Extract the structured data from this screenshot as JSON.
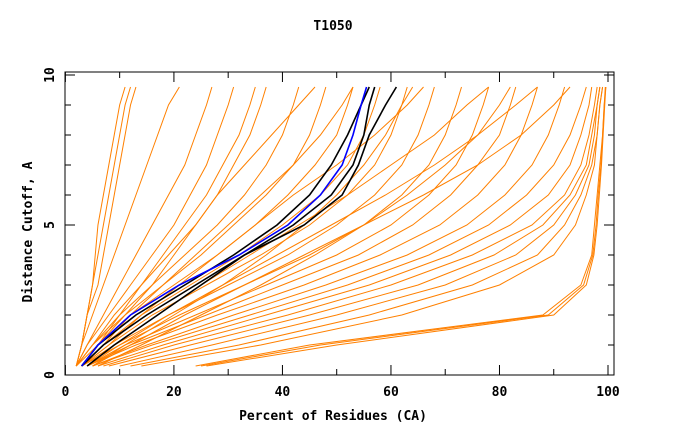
{
  "chart_data": {
    "type": "line",
    "title": "T1050",
    "xlabel": "Percent of Residues (CA)",
    "ylabel": "Distance Cutoff, A",
    "xlim": [
      0,
      101.5
    ],
    "ylim": [
      0,
      10
    ],
    "xticks": [
      0,
      20,
      40,
      60,
      80,
      100
    ],
    "yticks": [
      0,
      5,
      10
    ],
    "grid": false,
    "colors": {
      "models": "#ff8000",
      "highlight_black": "#000000",
      "highlight_blue": "#0000ff"
    },
    "y_levels": [
      0.3,
      1,
      2,
      3,
      4,
      5,
      6,
      7,
      8,
      9,
      9.6
    ],
    "series": [
      {
        "name": "model",
        "color": "models",
        "x": [
          2,
          3,
          4,
          5,
          6,
          7,
          8,
          9,
          10,
          11,
          12
        ]
      },
      {
        "name": "model",
        "color": "models",
        "x": [
          2,
          3,
          4,
          5,
          5.5,
          6,
          7,
          8,
          9,
          10,
          11
        ]
      },
      {
        "name": "model",
        "color": "models",
        "x": [
          2,
          3,
          4,
          6,
          7,
          8,
          9,
          10,
          11,
          12,
          13
        ]
      },
      {
        "name": "model",
        "color": "models",
        "x": [
          2,
          3,
          5,
          7,
          9,
          11,
          13,
          15,
          17,
          19,
          21
        ]
      },
      {
        "name": "model",
        "color": "models",
        "x": [
          2,
          4,
          7,
          10,
          13,
          16,
          19,
          22,
          24,
          26,
          27
        ]
      },
      {
        "name": "model",
        "color": "models",
        "x": [
          2,
          4,
          8,
          12,
          16,
          20,
          23,
          26,
          28,
          30,
          31
        ]
      },
      {
        "name": "model",
        "color": "models",
        "x": [
          2,
          5,
          9,
          14,
          19,
          24,
          28,
          31,
          34,
          36,
          37
        ]
      },
      {
        "name": "model",
        "color": "models",
        "x": [
          2,
          5,
          10,
          16,
          22,
          28,
          33,
          37,
          40,
          42,
          43
        ]
      },
      {
        "name": "model",
        "color": "models",
        "x": [
          2,
          5,
          11,
          18,
          25,
          31,
          37,
          42,
          45,
          47,
          48
        ]
      },
      {
        "name": "model",
        "color": "models",
        "x": [
          2,
          6,
          12,
          20,
          28,
          35,
          41,
          46,
          50,
          52,
          53
        ]
      },
      {
        "name": "model",
        "color": "models",
        "x": [
          3,
          7,
          14,
          23,
          32,
          40,
          47,
          52,
          55,
          57,
          58
        ]
      },
      {
        "name": "model",
        "color": "models",
        "x": [
          3,
          8,
          16,
          26,
          36,
          45,
          52,
          57,
          60,
          62,
          63
        ]
      },
      {
        "name": "model",
        "color": "models",
        "x": [
          3,
          9,
          19,
          30,
          41,
          50,
          57,
          62,
          65,
          67,
          68
        ]
      },
      {
        "name": "model",
        "color": "models",
        "x": [
          3,
          10,
          21,
          33,
          45,
          55,
          62,
          67,
          70,
          72,
          73
        ]
      },
      {
        "name": "model",
        "color": "models",
        "x": [
          4,
          11,
          24,
          37,
          50,
          60,
          67,
          72,
          75,
          77,
          78
        ]
      },
      {
        "name": "model",
        "color": "models",
        "x": [
          4,
          12,
          26,
          40,
          54,
          64,
          71,
          76,
          80,
          82,
          83
        ]
      },
      {
        "name": "model",
        "color": "models",
        "x": [
          4,
          13,
          28,
          44,
          58,
          69,
          76,
          81,
          84,
          86,
          87
        ]
      },
      {
        "name": "model",
        "color": "models",
        "x": [
          5,
          15,
          31,
          48,
          63,
          74,
          81,
          86,
          89,
          91,
          92
        ]
      },
      {
        "name": "model",
        "color": "models",
        "x": [
          5,
          16,
          34,
          52,
          67,
          78,
          85,
          90,
          93,
          95,
          96
        ]
      },
      {
        "name": "model",
        "color": "models",
        "x": [
          6,
          18,
          37,
          56,
          71,
          82,
          89,
          93,
          95,
          96.5,
          97
        ]
      },
      {
        "name": "model",
        "color": "models",
        "x": [
          7,
          20,
          41,
          60,
          75,
          86,
          92,
          95,
          96.5,
          97.5,
          98
        ]
      },
      {
        "name": "model",
        "color": "models",
        "x": [
          8,
          23,
          45,
          65,
          79,
          88,
          93,
          96,
          97,
          98,
          98.5
        ]
      },
      {
        "name": "model",
        "color": "models",
        "x": [
          10,
          27,
          50,
          70,
          83,
          90,
          94,
          96.5,
          97.5,
          98,
          98.5
        ]
      },
      {
        "name": "model",
        "color": "models",
        "x": [
          12,
          32,
          56,
          75,
          87,
          92,
          95,
          97,
          98,
          98.5,
          99
        ]
      },
      {
        "name": "model",
        "color": "models",
        "x": [
          14,
          36,
          62,
          80,
          90,
          94,
          96,
          97.5,
          98,
          98.5,
          99
        ]
      },
      {
        "name": "model",
        "color": "models",
        "x": [
          3,
          6,
          10,
          14,
          18,
          22,
          26,
          29,
          32,
          34,
          35
        ]
      },
      {
        "name": "model",
        "color": "models",
        "x": [
          3,
          7,
          12,
          18,
          24,
          30,
          36,
          42,
          47,
          51,
          53
        ]
      },
      {
        "name": "model",
        "color": "models",
        "x": [
          3,
          8,
          14,
          21,
          28,
          35,
          42,
          50,
          57,
          63,
          66
        ]
      },
      {
        "name": "model",
        "color": "models",
        "x": [
          4,
          9,
          17,
          25,
          34,
          43,
          52,
          60,
          68,
          74,
          78
        ]
      },
      {
        "name": "model",
        "color": "models",
        "x": [
          4,
          10,
          19,
          29,
          39,
          49,
          59,
          68,
          76,
          83,
          87
        ]
      },
      {
        "name": "model",
        "color": "models",
        "x": [
          5,
          12,
          22,
          33,
          44,
          55,
          66,
          76,
          84,
          90,
          93
        ]
      },
      {
        "name": "model",
        "color": "models",
        "x": [
          5,
          11,
          20,
          29,
          37,
          44,
          50,
          55,
          59,
          62,
          64
        ]
      },
      {
        "name": "model",
        "color": "models",
        "x": [
          6,
          14,
          25,
          36,
          46,
          55,
          63,
          70,
          76,
          80,
          82
        ]
      },
      {
        "name": "model",
        "color": "models",
        "x": [
          3,
          6,
          11,
          16,
          20,
          24,
          28,
          33,
          38,
          43,
          46
        ]
      },
      {
        "name": "model",
        "color": "models",
        "x": [
          24,
          45,
          88,
          95,
          97,
          97.5,
          98,
          98.5,
          99,
          99.3,
          99.5
        ]
      },
      {
        "name": "model",
        "color": "models",
        "x": [
          25,
          47,
          89,
          95.5,
          97.2,
          97.8,
          98.2,
          98.7,
          99,
          99.3,
          99.6
        ]
      },
      {
        "name": "model",
        "color": "models",
        "x": [
          26,
          50,
          90,
          96,
          97.4,
          98,
          98.4,
          98.8,
          99.1,
          99.4,
          99.6
        ]
      },
      {
        "name": "highlight",
        "color": "highlight_black",
        "x": [
          3,
          6,
          13,
          22,
          31,
          39,
          45,
          49,
          52,
          54.5,
          56
        ]
      },
      {
        "name": "highlight",
        "color": "highlight_black",
        "x": [
          4,
          9,
          17,
          25,
          33,
          42,
          49,
          53,
          55,
          56,
          57
        ]
      },
      {
        "name": "highlight",
        "color": "highlight_black",
        "x": [
          3,
          7,
          15,
          24,
          33,
          44,
          51,
          54,
          56,
          59,
          61
        ]
      },
      {
        "name": "highlight",
        "color": "highlight_blue",
        "x": [
          3,
          6,
          12,
          21,
          32,
          41,
          47,
          51,
          53,
          54.5,
          55.5
        ]
      }
    ]
  }
}
